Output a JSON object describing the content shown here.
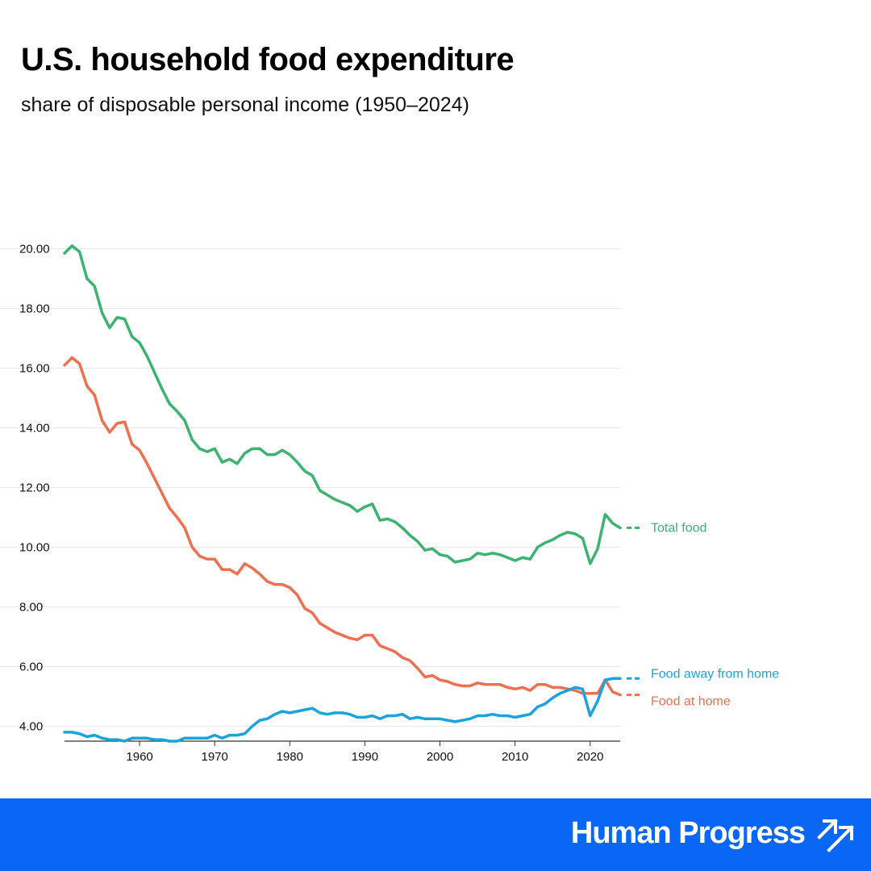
{
  "header": {
    "title": "U.S. household food expenditure",
    "subtitle": "share of disposable personal income (1950–2024)"
  },
  "footer": {
    "brand": "Human Progress",
    "background": "#0a66f5"
  },
  "chart_data": {
    "type": "line",
    "title": "U.S. household food expenditure",
    "subtitle": "share of disposable personal income (1950–2024)",
    "xlabel": "",
    "ylabel": "",
    "xlim": [
      1950,
      2024
    ],
    "ylim": [
      3.5,
      20.5
    ],
    "y_ticks": [
      4,
      6,
      8,
      10,
      12,
      14,
      16,
      18,
      20
    ],
    "y_tick_labels": [
      "4.00",
      "6.00",
      "8.00",
      "10.00",
      "12.00",
      "14.00",
      "16.00",
      "18.00",
      "20.00"
    ],
    "x_ticks": [
      1960,
      1970,
      1980,
      1990,
      2000,
      2010,
      2020
    ],
    "x_tick_labels": [
      "1960",
      "1970",
      "1980",
      "1990",
      "2000",
      "2010",
      "2020"
    ],
    "grid": "horizontal",
    "legend": "right-end labels",
    "x": [
      1950,
      1951,
      1952,
      1953,
      1954,
      1955,
      1956,
      1957,
      1958,
      1959,
      1960,
      1961,
      1962,
      1963,
      1964,
      1965,
      1966,
      1967,
      1968,
      1969,
      1970,
      1971,
      1972,
      1973,
      1974,
      1975,
      1976,
      1977,
      1978,
      1979,
      1980,
      1981,
      1982,
      1983,
      1984,
      1985,
      1986,
      1987,
      1988,
      1989,
      1990,
      1991,
      1992,
      1993,
      1994,
      1995,
      1996,
      1997,
      1998,
      1999,
      2000,
      2001,
      2002,
      2003,
      2004,
      2005,
      2006,
      2007,
      2008,
      2009,
      2010,
      2011,
      2012,
      2013,
      2014,
      2015,
      2016,
      2017,
      2018,
      2019,
      2020,
      2021,
      2022,
      2023,
      2024
    ],
    "series": [
      {
        "name": "Total food",
        "color": "#3cb371",
        "values": [
          19.85,
          20.1,
          19.9,
          19.0,
          18.75,
          17.85,
          17.35,
          17.7,
          17.65,
          17.05,
          16.85,
          16.4,
          15.85,
          15.3,
          14.8,
          14.55,
          14.25,
          13.6,
          13.3,
          13.2,
          13.3,
          12.85,
          12.95,
          12.8,
          13.15,
          13.3,
          13.3,
          13.1,
          13.1,
          13.25,
          13.1,
          12.85,
          12.55,
          12.4,
          11.9,
          11.75,
          11.6,
          11.5,
          11.4,
          11.2,
          11.35,
          11.45,
          10.9,
          10.95,
          10.85,
          10.65,
          10.4,
          10.2,
          9.9,
          9.95,
          9.75,
          9.7,
          9.5,
          9.55,
          9.6,
          9.8,
          9.75,
          9.8,
          9.75,
          9.65,
          9.55,
          9.65,
          9.6,
          10.0,
          10.15,
          10.25,
          10.4,
          10.5,
          10.45,
          10.3,
          9.45,
          9.95,
          11.1,
          10.8,
          10.65
        ]
      },
      {
        "name": "Food at home",
        "color": "#ee7050",
        "values": [
          16.1,
          16.35,
          16.15,
          15.4,
          15.1,
          14.25,
          13.85,
          14.15,
          14.2,
          13.45,
          13.25,
          12.8,
          12.3,
          11.8,
          11.3,
          11.0,
          10.65,
          10.0,
          9.7,
          9.6,
          9.6,
          9.25,
          9.25,
          9.1,
          9.45,
          9.3,
          9.1,
          8.85,
          8.75,
          8.75,
          8.65,
          8.4,
          7.95,
          7.8,
          7.45,
          7.3,
          7.15,
          7.05,
          6.95,
          6.9,
          7.05,
          7.05,
          6.7,
          6.6,
          6.5,
          6.3,
          6.2,
          5.95,
          5.65,
          5.7,
          5.55,
          5.5,
          5.4,
          5.35,
          5.35,
          5.45,
          5.4,
          5.4,
          5.4,
          5.3,
          5.25,
          5.3,
          5.2,
          5.4,
          5.4,
          5.3,
          5.3,
          5.25,
          5.2,
          5.1,
          5.1,
          5.1,
          5.55,
          5.15,
          5.05
        ]
      },
      {
        "name": "Food away from home",
        "color": "#1ca3dc",
        "values": [
          3.8,
          3.8,
          3.75,
          3.65,
          3.7,
          3.6,
          3.55,
          3.55,
          3.5,
          3.6,
          3.6,
          3.6,
          3.55,
          3.55,
          3.5,
          3.5,
          3.6,
          3.6,
          3.6,
          3.6,
          3.7,
          3.6,
          3.7,
          3.7,
          3.75,
          4.0,
          4.2,
          4.25,
          4.4,
          4.5,
          4.45,
          4.5,
          4.55,
          4.6,
          4.45,
          4.4,
          4.45,
          4.45,
          4.4,
          4.3,
          4.3,
          4.35,
          4.25,
          4.35,
          4.35,
          4.4,
          4.25,
          4.3,
          4.25,
          4.25,
          4.25,
          4.2,
          4.15,
          4.2,
          4.25,
          4.35,
          4.35,
          4.4,
          4.35,
          4.35,
          4.3,
          4.35,
          4.4,
          4.65,
          4.75,
          4.95,
          5.1,
          5.2,
          5.3,
          5.25,
          4.35,
          4.85,
          5.55,
          5.6,
          5.6
        ]
      }
    ]
  }
}
